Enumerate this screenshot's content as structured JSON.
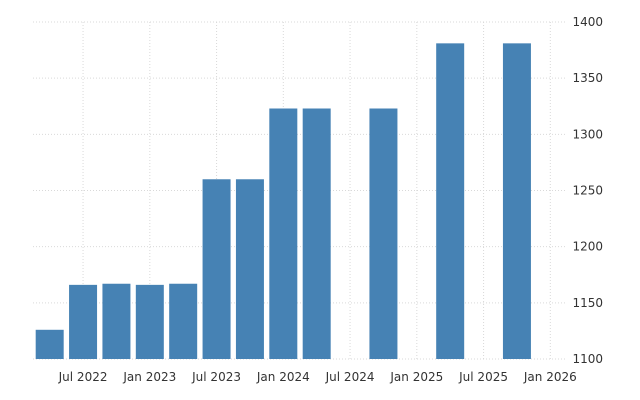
{
  "chart_data": {
    "type": "bar",
    "x": [
      "2022-04",
      "2022-07",
      "2022-10",
      "2023-01",
      "2023-04",
      "2023-07",
      "2023-10",
      "2024-01",
      "2024-04",
      "2024-07",
      "2024-10",
      "2025-01",
      "2025-04",
      "2025-07",
      "2025-10",
      "2026-01"
    ],
    "values": [
      1126,
      1166,
      1167,
      1166,
      1167,
      1260,
      1260,
      1323,
      1323,
      null,
      1323,
      null,
      1381,
      null,
      1381,
      null
    ],
    "x_tick_labels": [
      {
        "x": "2022-07",
        "label": "Jul 2022"
      },
      {
        "x": "2023-01",
        "label": "Jan 2023"
      },
      {
        "x": "2023-07",
        "label": "Jul 2023"
      },
      {
        "x": "2024-01",
        "label": "Jan 2024"
      },
      {
        "x": "2024-07",
        "label": "Jul 2024"
      },
      {
        "x": "2025-01",
        "label": "Jan 2025"
      },
      {
        "x": "2025-07",
        "label": "Jul 2025"
      },
      {
        "x": "2026-01",
        "label": "Jan 2026"
      }
    ],
    "y_ticks": [
      1100,
      1150,
      1200,
      1250,
      1300,
      1350,
      1400
    ],
    "ylim": [
      1100,
      1400
    ],
    "y_axis_side": "right",
    "grid": true,
    "title": "",
    "xlabel": "",
    "ylabel": "",
    "bar_color": "#4682b4",
    "grid_color": "#d9d9d9",
    "text_color": "#333333"
  }
}
